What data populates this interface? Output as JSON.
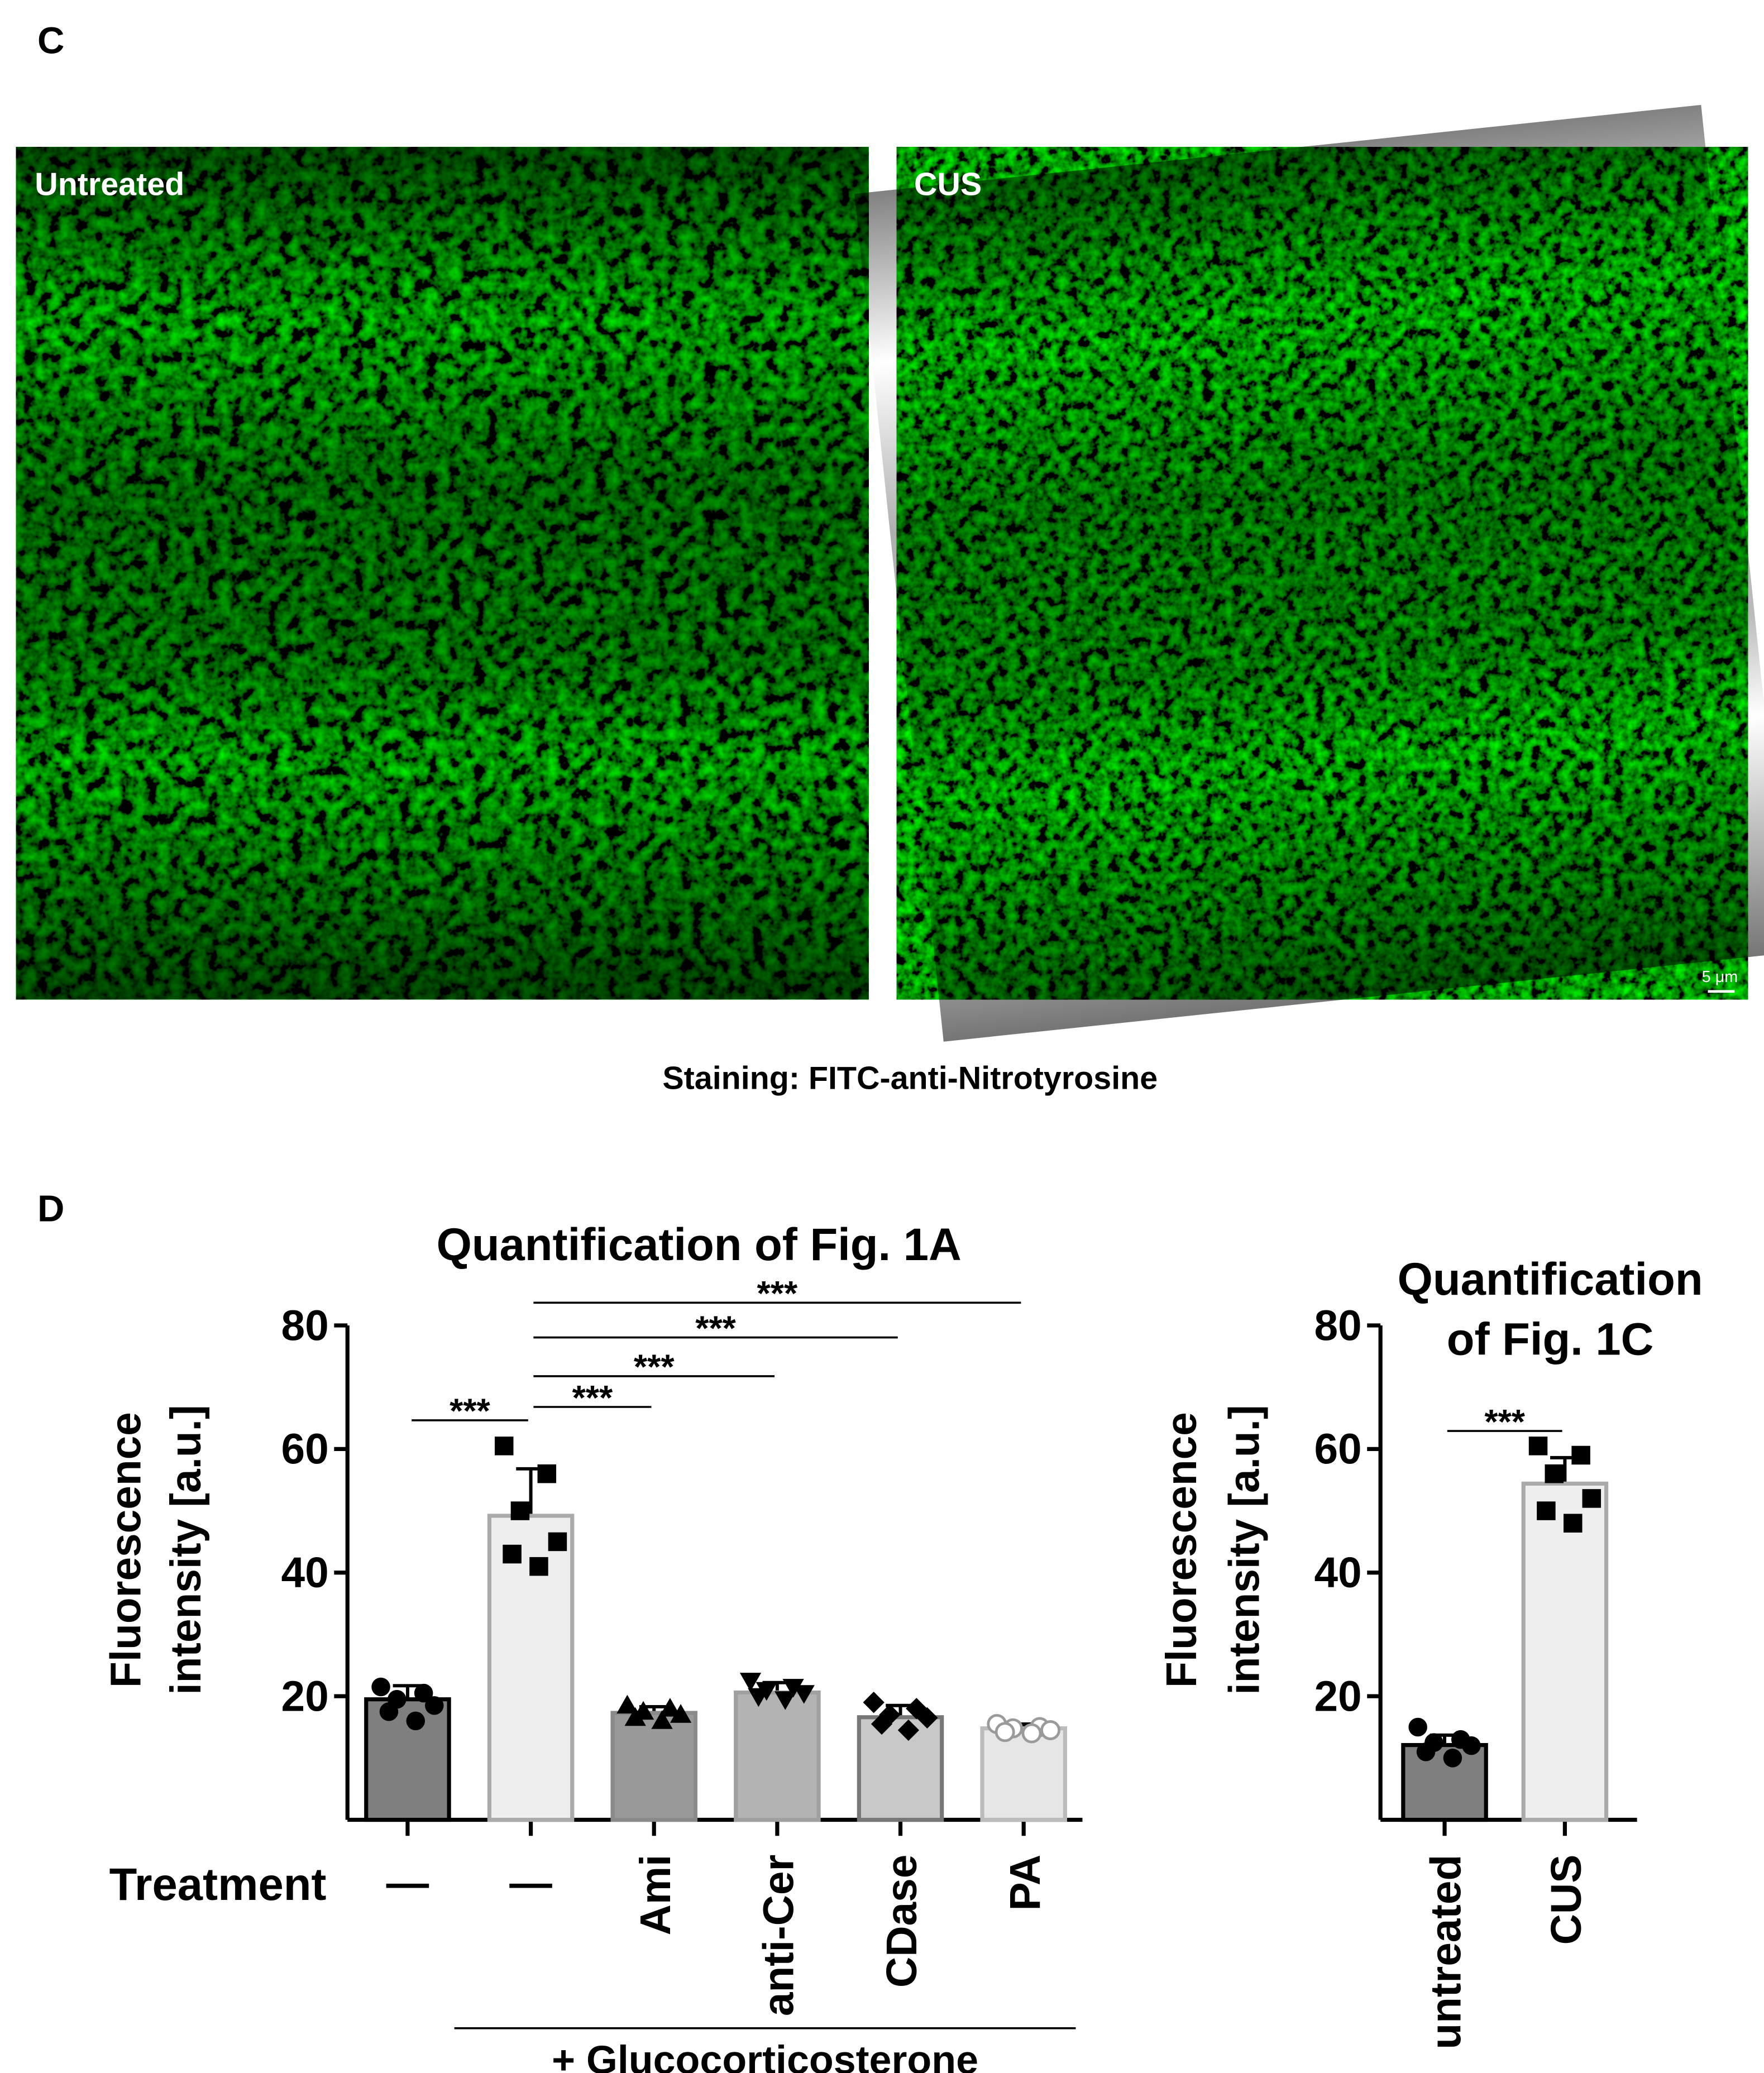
{
  "panel_c": {
    "label": "C",
    "images": [
      {
        "label": "Untreated"
      },
      {
        "label": "CUS",
        "scale_bar": "5 μm"
      }
    ],
    "caption": "Staining: FITC-anti-Nitrotyrosine"
  },
  "panel_d": {
    "label": "D"
  },
  "chart_data": [
    {
      "type": "bar",
      "title": [
        "Quantification of Fig. 1A"
      ],
      "ylabel": [
        "Fluorescence",
        "intensity [a.u.]"
      ],
      "xlabel": "Treatment",
      "group_label": "+ Glucocorticosterone",
      "categories": [
        "—",
        "—",
        "Ami",
        "anti-Cer",
        "CDase",
        "PA"
      ],
      "values": [
        19.5,
        49.2,
        17.3,
        20.6,
        16.6,
        14.8
      ],
      "errors": [
        2.2,
        7.6,
        1.0,
        1.6,
        1.9,
        0.7
      ],
      "points": [
        [
          21.5,
          20.5,
          19.5,
          18.5,
          17.5,
          16
        ],
        [
          60.5,
          56,
          50,
          45,
          43,
          41
        ],
        [
          18.5,
          18,
          17.5,
          17,
          16.5,
          16
        ],
        [
          22.5,
          21.5,
          21,
          20.5,
          20,
          19.5
        ],
        [
          19,
          18,
          17,
          16.5,
          15.5,
          14.5
        ],
        [
          15.5,
          15,
          14.8,
          14.5,
          14.2,
          14
        ]
      ],
      "colors": [
        "#7f7f7f",
        "#eeeeee",
        "#999999",
        "#b3b3b3",
        "#c8c8c8",
        "#e6e6e6"
      ],
      "edge_colors": [
        "#000000",
        "#aaaaaa",
        "#8a8a8a",
        "#a0a0a0",
        "#777777",
        "#bbbbbb"
      ],
      "markers": [
        "circle",
        "square",
        "triangle",
        "triangle-down",
        "diamond",
        "circle-open"
      ],
      "significance": [
        "***",
        "***",
        "***",
        "***",
        "***"
      ],
      "ylim": [
        0,
        80
      ],
      "yticks": [
        20,
        40,
        60,
        80
      ]
    },
    {
      "type": "bar",
      "title": [
        "Quantification",
        "of Fig. 1C"
      ],
      "ylabel": [
        "Fluorescence",
        "intensity [a.u.]"
      ],
      "categories": [
        "untreated",
        "CUS"
      ],
      "values": [
        12.1,
        54.4
      ],
      "errors": [
        1.6,
        4.2
      ],
      "points": [
        [
          15,
          13,
          12.5,
          12,
          11,
          10
        ],
        [
          60.5,
          59,
          56,
          52,
          50,
          48
        ]
      ],
      "colors": [
        "#7f7f7f",
        "#eeeeee"
      ],
      "edge_colors": [
        "#000000",
        "#aaaaaa"
      ],
      "markers": [
        "circle",
        "square"
      ],
      "significance": [
        "***"
      ],
      "ylim": [
        0,
        80
      ],
      "yticks": [
        20,
        40,
        60,
        80
      ]
    }
  ]
}
